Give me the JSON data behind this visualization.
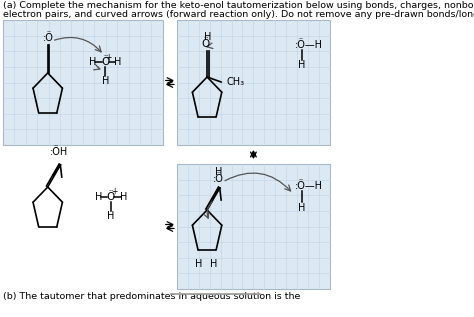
{
  "title_line1": "(a) Complete the mechanism for the keto-enol tautomerization below using bonds, charges, nonbonding",
  "title_line2": "electron pairs, and curved arrows (forward reaction only). Do not remove any pre-drawn bonds/lone pairs.",
  "footer_text": "(b) The tautomer that predominates in aqueous solution is the",
  "bg_color": "#ffffff",
  "grid_color": "#c0d4e4",
  "box_border_color": "#a8b8c8",
  "grid_bg": "#dce8f2",
  "font_size_title": 6.8,
  "font_size_chem": 7.5,
  "font_size_small": 6.0
}
